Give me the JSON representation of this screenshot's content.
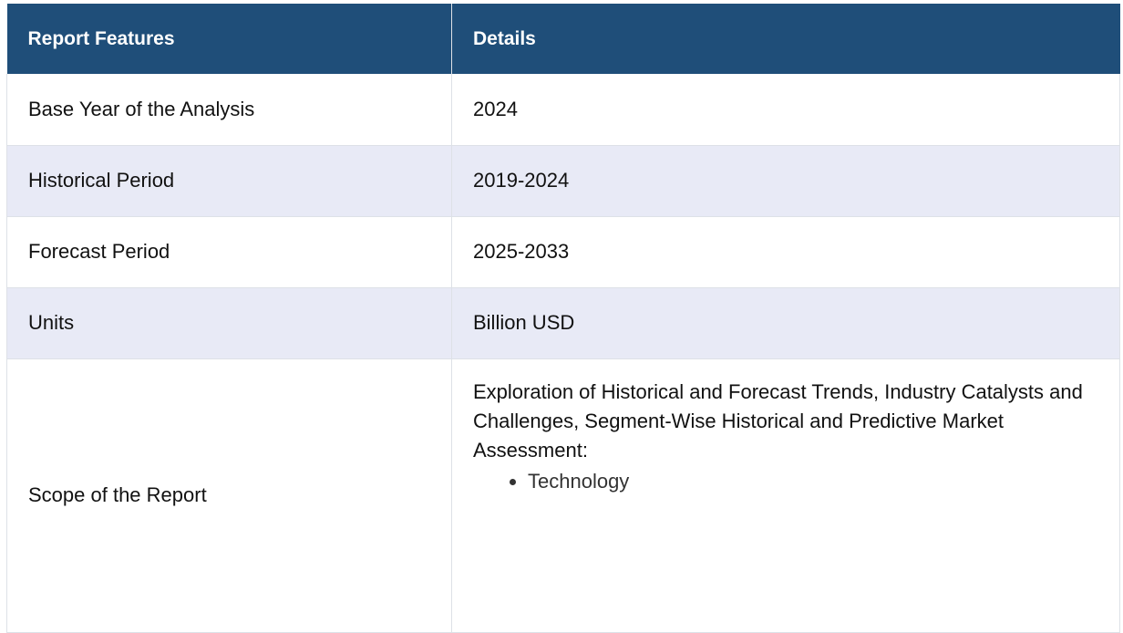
{
  "table": {
    "headers": [
      "Report Features",
      "Details"
    ],
    "rows": [
      {
        "feature": "Base Year of the Analysis",
        "detail": "2024"
      },
      {
        "feature": "Historical Period",
        "detail": "2019-2024"
      },
      {
        "feature": "Forecast Period",
        "detail": "2025-2033"
      },
      {
        "feature": "Units",
        "detail": "Billion USD"
      }
    ],
    "scope": {
      "feature": "Scope of the Report",
      "detail": "Exploration of Historical and Forecast Trends, Industry Catalysts and Challenges, Segment-Wise Historical and Predictive Market Assessment:",
      "list": [
        "Technology"
      ]
    }
  }
}
